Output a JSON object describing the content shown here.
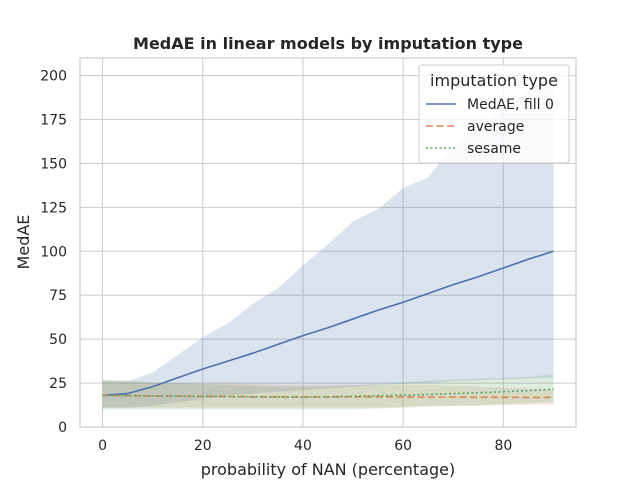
{
  "chart_data": {
    "type": "line",
    "title": "MedAE in linear models by imputation type",
    "xlabel": "probability of NAN (percentage)",
    "ylabel": "MedAE",
    "xlim": [
      -4.5,
      94.5
    ],
    "ylim": [
      0,
      210
    ],
    "xticks": [
      0,
      20,
      40,
      60,
      80
    ],
    "yticks": [
      0,
      25,
      50,
      75,
      100,
      125,
      150,
      175,
      200
    ],
    "grid": true,
    "legend": {
      "title": "imputation type",
      "position": "top-right"
    },
    "x": [
      0,
      5,
      10,
      15,
      20,
      25,
      30,
      35,
      40,
      45,
      50,
      55,
      60,
      65,
      70,
      75,
      80,
      85,
      90
    ],
    "series": [
      {
        "name": "MedAE, fill 0",
        "color": "#4c72b0",
        "style": "solid",
        "values": [
          18,
          19,
          23,
          28,
          33,
          37.5,
          42,
          47,
          52,
          56.5,
          61.5,
          66.5,
          71,
          76,
          81,
          85.5,
          90.5,
          95.5,
          100
        ],
        "lower": [
          11,
          11,
          12,
          14,
          16,
          18,
          19,
          20,
          21,
          22,
          23,
          24,
          24.5,
          25,
          26,
          26.5,
          27,
          27.5,
          28
        ],
        "upper": [
          26,
          26,
          31,
          41,
          51,
          59,
          70,
          79,
          92,
          104,
          117,
          124,
          136,
          142,
          160,
          170,
          180,
          192,
          200
        ]
      },
      {
        "name": "average",
        "color": "#dd8452",
        "style": "dashed",
        "values": [
          18,
          17.8,
          17.6,
          17.5,
          17.4,
          17.3,
          17.2,
          17.2,
          17.1,
          17.1,
          17.2,
          17.2,
          17.1,
          17.0,
          17.0,
          16.9,
          16.9,
          16.8,
          16.8
        ],
        "lower": [
          11,
          11,
          11,
          11,
          11,
          11,
          11,
          11,
          11,
          11,
          11,
          11,
          11.5,
          12,
          12,
          12,
          12.5,
          12.5,
          13
        ],
        "upper": [
          26,
          25.5,
          25,
          25,
          25,
          25,
          24.5,
          24,
          24,
          24,
          24,
          24,
          24,
          24,
          23.5,
          23,
          22.5,
          22,
          21.5
        ]
      },
      {
        "name": "sesame",
        "color": "#55a868",
        "style": "dotted",
        "values": [
          18,
          17.9,
          17.8,
          17.6,
          17.5,
          17.3,
          17.2,
          17.1,
          17.0,
          17.2,
          17.5,
          17.8,
          18.1,
          18.5,
          19.0,
          19.5,
          20.1,
          20.7,
          21.5
        ],
        "lower": [
          10,
          10,
          10,
          10,
          10,
          10,
          10,
          10,
          10,
          10,
          10,
          10.5,
          11,
          11.5,
          12,
          12.5,
          13,
          13.5,
          14
        ],
        "upper": [
          27,
          26.5,
          25.5,
          25,
          24.5,
          24,
          23.5,
          23,
          23,
          23,
          23.5,
          24.5,
          25.5,
          26.5,
          27,
          27.5,
          28,
          28.5,
          30
        ]
      }
    ]
  }
}
